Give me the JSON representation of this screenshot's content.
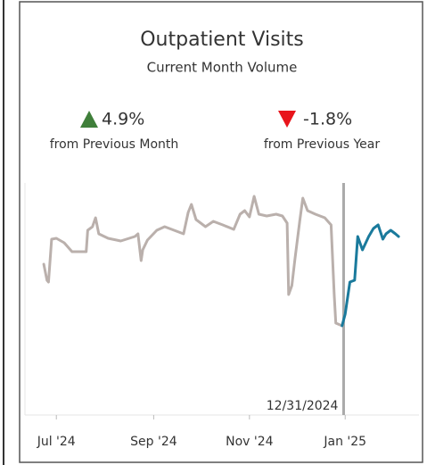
{
  "header": {
    "title": "Outpatient Visits",
    "subtitle": "Current Month Volume"
  },
  "kpis": [
    {
      "value": "4.9%",
      "label": "from Previous Month"
    },
    {
      "value": "-1.8%",
      "label": "from Previous Year"
    }
  ],
  "chart_data": {
    "type": "line",
    "series": [
      {
        "color": "#bab0ac",
        "x": [
          "2024-06-23",
          "2024-06-25",
          "2024-06-26",
          "2024-06-28",
          "2024-07-01",
          "2024-07-06",
          "2024-07-11",
          "2024-07-20",
          "2024-07-21",
          "2024-07-24",
          "2024-07-26",
          "2024-07-28",
          "2024-08-03",
          "2024-08-11",
          "2024-08-20",
          "2024-08-22",
          "2024-08-24",
          "2024-08-25",
          "2024-08-28",
          "2024-09-03",
          "2024-09-08",
          "2024-09-14",
          "2024-09-20",
          "2024-09-23",
          "2024-09-25",
          "2024-09-28",
          "2024-10-04",
          "2024-10-09",
          "2024-10-15",
          "2024-10-22",
          "2024-10-26",
          "2024-10-29",
          "2024-11-01",
          "2024-11-04",
          "2024-11-07",
          "2024-11-12",
          "2024-11-18",
          "2024-11-22",
          "2024-11-25",
          "2024-11-26",
          "2024-11-28",
          "2024-11-30",
          "2024-12-03",
          "2024-12-05",
          "2024-12-08",
          "2024-12-13",
          "2024-12-19",
          "2024-12-23",
          "2024-12-25",
          "2024-12-26",
          "2024-12-30"
        ],
        "values": [
          169,
          151,
          149,
          197,
          198,
          193,
          183,
          183,
          207,
          211,
          221,
          203,
          198,
          195,
          200,
          203,
          173,
          185,
          196,
          207,
          211,
          207,
          203,
          227,
          236,
          219,
          211,
          217,
          213,
          208,
          225,
          229,
          222,
          245,
          225,
          223,
          225,
          223,
          215,
          135,
          145,
          175,
          217,
          243,
          229,
          225,
          221,
          213,
          135,
          103,
          100
        ]
      },
      {
        "color": "#1a7a9c",
        "x": [
          "2024-12-30",
          "2025-01-01",
          "2025-01-04",
          "2025-01-07",
          "2025-01-09",
          "2025-01-12",
          "2025-01-16",
          "2025-01-19",
          "2025-01-22",
          "2025-01-25",
          "2025-01-27",
          "2025-01-30",
          "2025-02-02",
          "2025-02-04"
        ],
        "values": [
          100,
          113,
          149,
          151,
          200,
          185,
          200,
          209,
          213,
          197,
          203,
          207,
          203,
          200
        ]
      }
    ],
    "xlim": [
      "2024-06-11",
      "2025-02-17"
    ],
    "xticks": [
      {
        "value": "2024-07-01",
        "label": "Jul '24"
      },
      {
        "value": "2024-09-01",
        "label": "Sep '24"
      },
      {
        "value": "2024-11-01",
        "label": "Nov '24"
      },
      {
        "value": "2025-01-01",
        "label": "Jan '25"
      }
    ],
    "ylim": [
      0,
      260
    ],
    "reference_line": {
      "x": "2024-12-31",
      "label": "12/31/2024"
    }
  }
}
